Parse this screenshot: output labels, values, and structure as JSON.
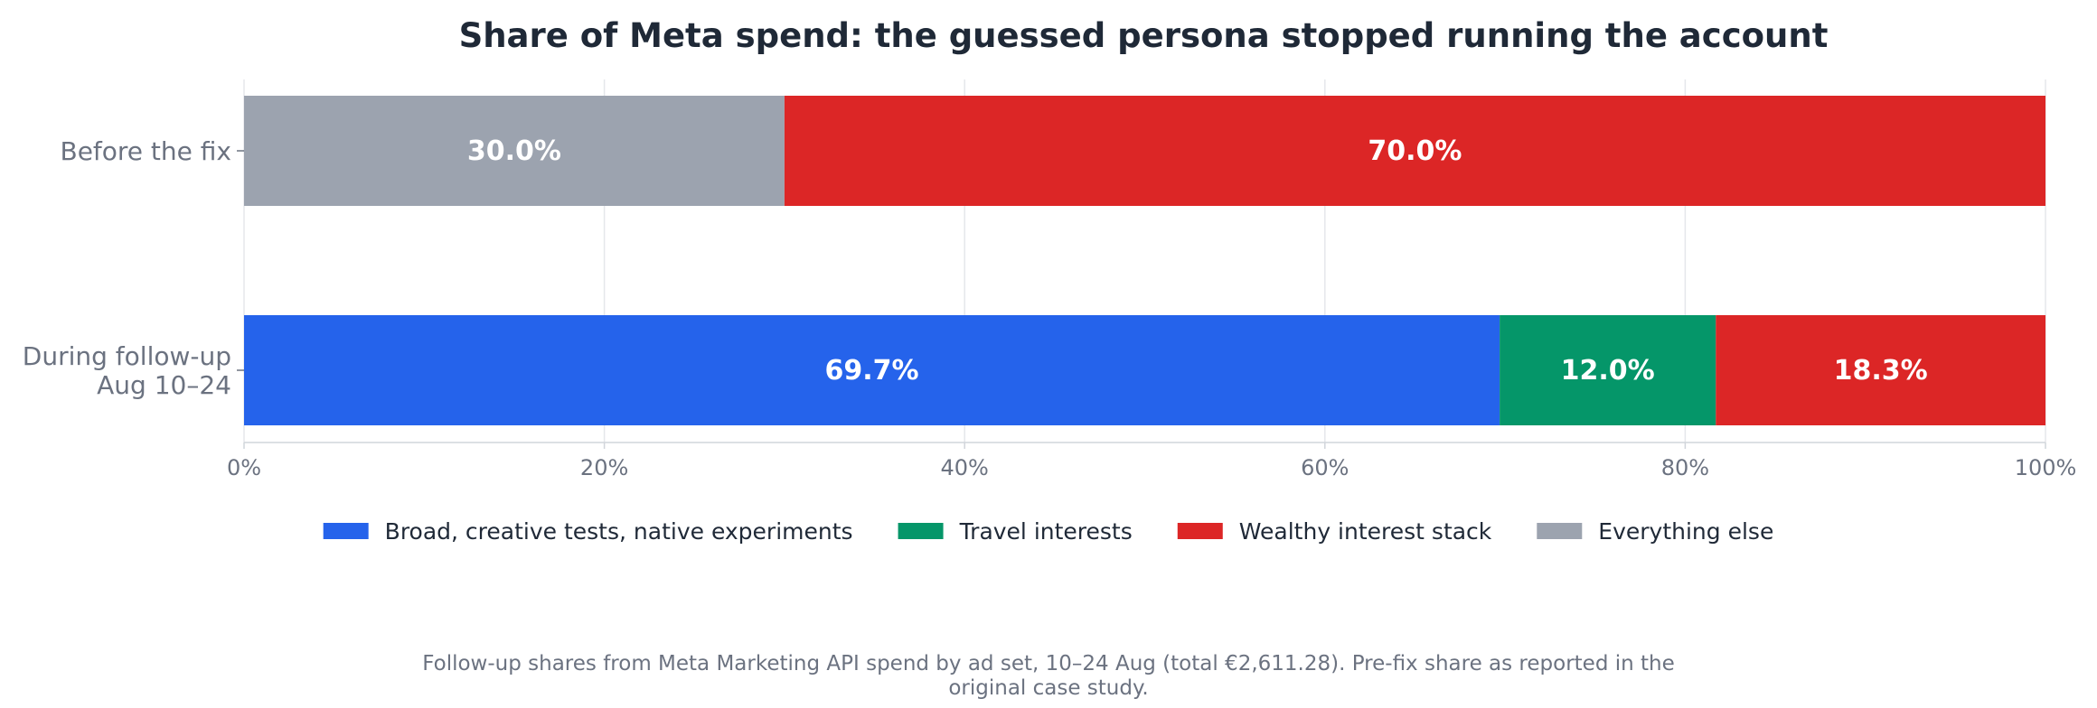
{
  "chart_data": {
    "type": "bar",
    "orientation": "horizontal",
    "stacked": true,
    "title": "Share of Meta spend: the guessed persona stopped running the account",
    "categories": [
      [
        "Before the fix"
      ],
      [
        "During follow-up",
        "Aug 10–24"
      ]
    ],
    "xlim": [
      0,
      100
    ],
    "x_ticks": [
      0,
      20,
      40,
      60,
      80,
      100
    ],
    "x_tick_labels": [
      "0%",
      "20%",
      "40%",
      "60%",
      "80%",
      "100%"
    ],
    "grid": true,
    "legend_position": "bottom",
    "series": [
      {
        "name": "Broad, creative tests, native experiments",
        "color": "#2563eb",
        "values": [
          0,
          69.7
        ]
      },
      {
        "name": "Travel interests",
        "color": "#059669",
        "values": [
          0,
          12.0
        ]
      },
      {
        "name": "Wealthy interest stack",
        "color": "#dc2626",
        "values": [
          70.0,
          18.3
        ]
      },
      {
        "name": "Everything else",
        "color": "#9ca3af",
        "values": [
          30.0,
          0
        ]
      }
    ],
    "bar_order": [
      [
        "Everything else",
        "Wealthy interest stack"
      ],
      [
        "Broad, creative tests, native experiments",
        "Travel interests",
        "Wealthy interest stack"
      ]
    ],
    "data_labels": [
      [
        "30.0%",
        "70.0%"
      ],
      [
        "69.7%",
        "12.0%",
        "18.3%"
      ]
    ]
  },
  "footnote": [
    "Follow-up shares from Meta Marketing API spend by ad set, 10–24 Aug (total €2,611.28). Pre-fix share as reported in the",
    "original case study."
  ]
}
